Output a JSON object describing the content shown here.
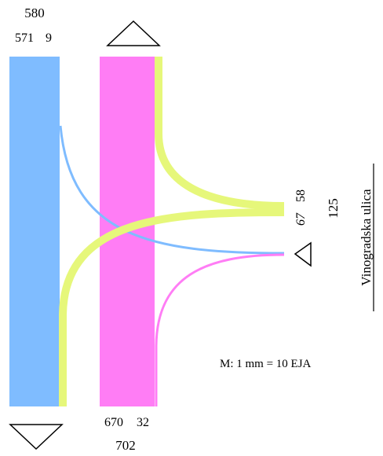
{
  "diagram": {
    "colors": {
      "blue": "#7fbcff",
      "magenta": "#ff7df5",
      "yellow_green": "#e6f77a",
      "arrow_stroke": "#000000"
    },
    "labels": {
      "left_total": "580",
      "left_split_a": "571",
      "left_split_b": "9",
      "bottom_split_a": "670",
      "bottom_split_b": "32",
      "bottom_total": "702",
      "right_split_a": "67",
      "right_split_b": "58",
      "right_total": "125",
      "street_name": "Vinogradska ulica",
      "scale_note": "M:   1 mm = 10 EJA"
    },
    "arrows": {
      "top": "triangle-up-icon",
      "bottom_left": "triangle-down-icon",
      "right": "triangle-left-icon"
    }
  }
}
